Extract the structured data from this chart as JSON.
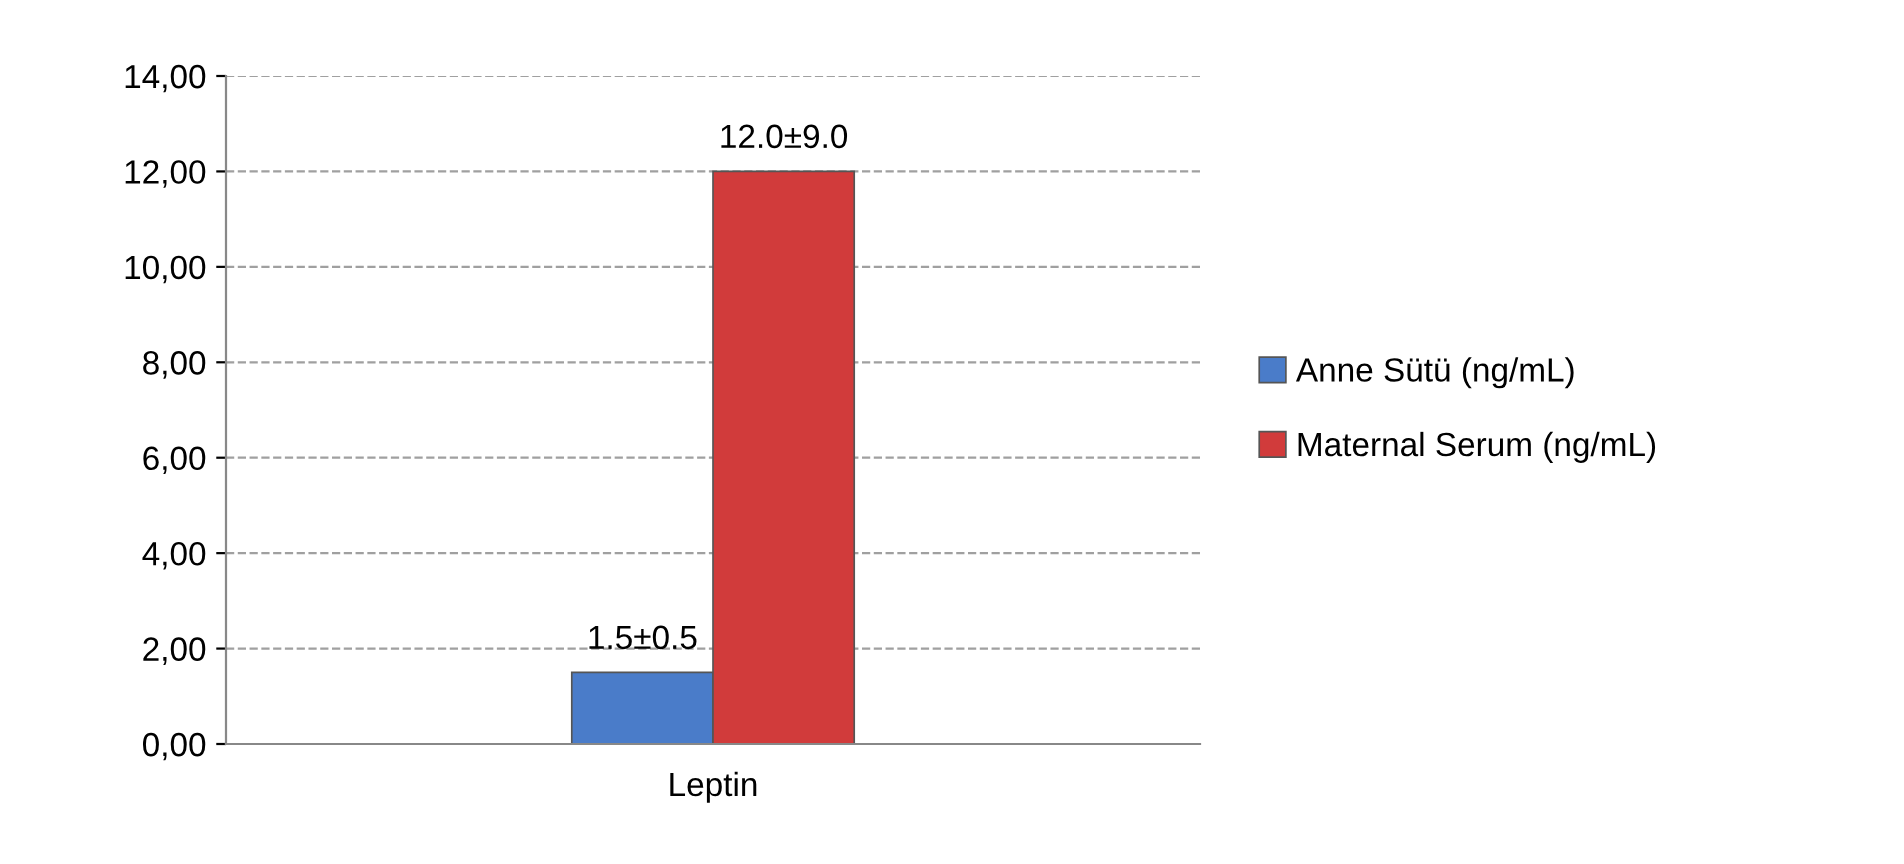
{
  "chart_data": {
    "type": "bar",
    "categories": [
      "Leptin"
    ],
    "series": [
      {
        "name": "Anne Sütü (ng/mL)",
        "color": "#4a7cc9",
        "values": [
          1.5
        ],
        "value_labels": [
          "1.5±0.5"
        ]
      },
      {
        "name": "Maternal Serum (ng/mL)",
        "color": "#d13b3b",
        "values": [
          12.0
        ],
        "value_labels": [
          "12.0±9.0"
        ]
      }
    ],
    "ylim": [
      0,
      14
    ],
    "yticks": [
      {
        "value": 0,
        "label": "0,00"
      },
      {
        "value": 2,
        "label": "2,00"
      },
      {
        "value": 4,
        "label": "4,00"
      },
      {
        "value": 6,
        "label": "6,00"
      },
      {
        "value": 8,
        "label": "8,00"
      },
      {
        "value": 10,
        "label": "10,00"
      },
      {
        "value": 12,
        "label": "12,00"
      },
      {
        "value": 14,
        "label": "14,00"
      }
    ],
    "grid": "y",
    "legend": "right"
  }
}
